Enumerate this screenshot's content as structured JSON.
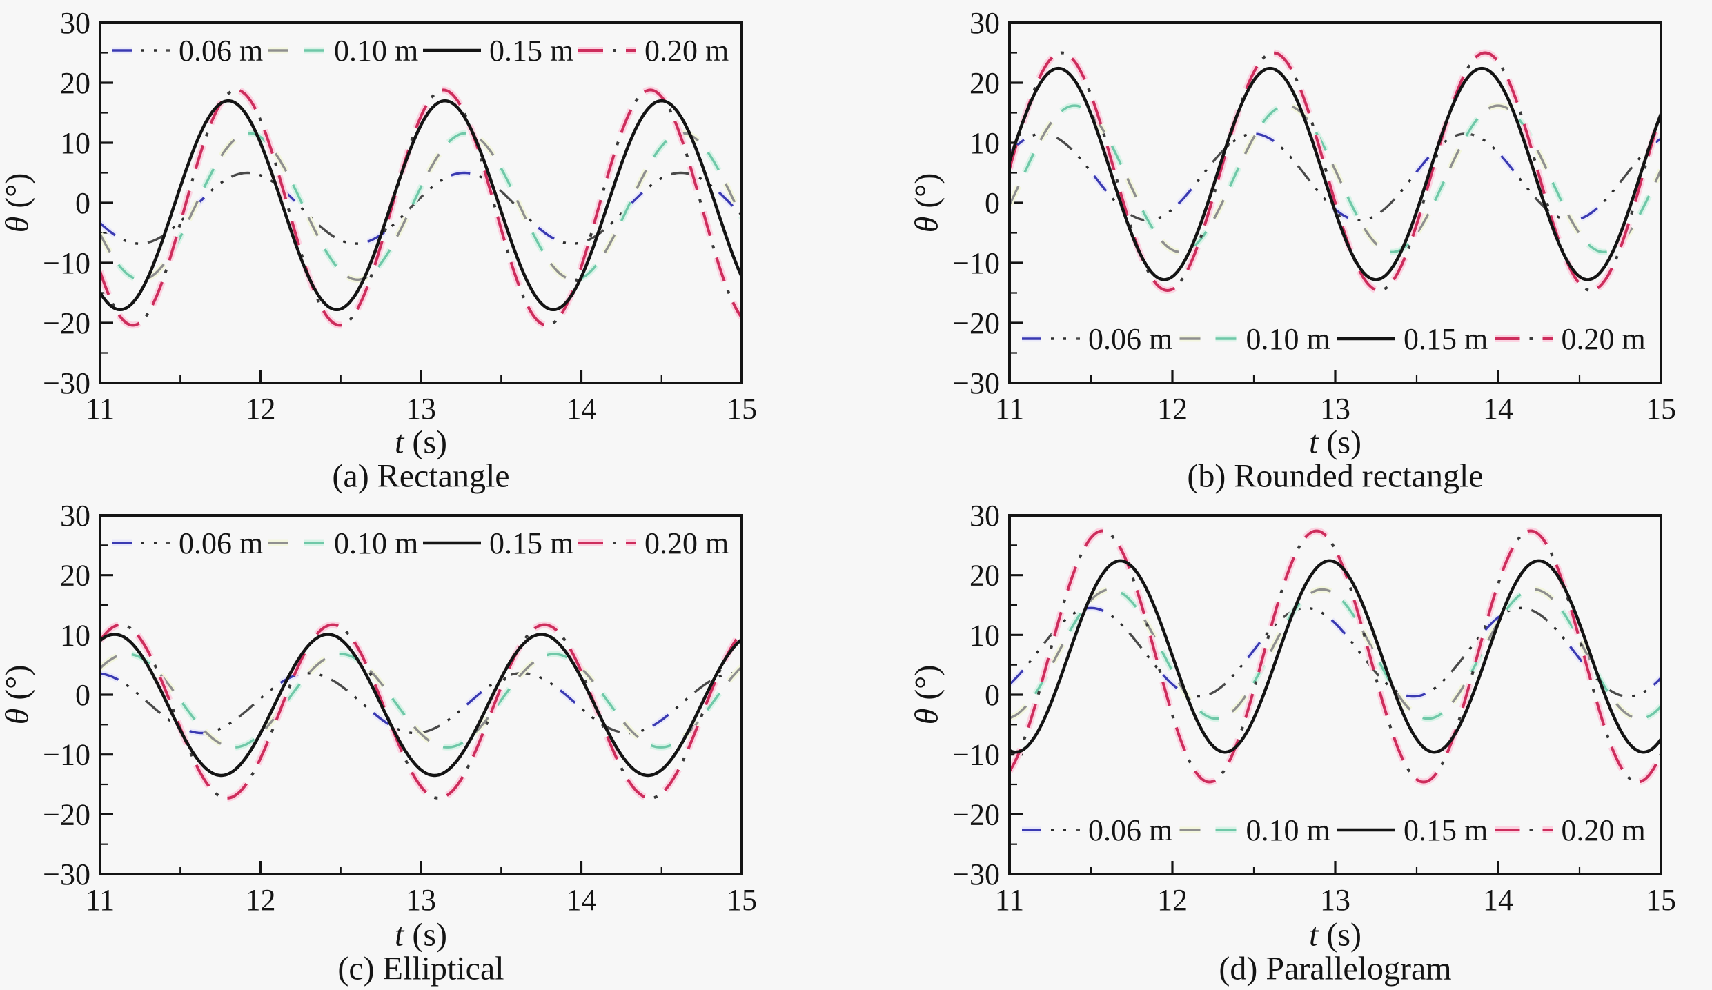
{
  "figure": {
    "background": "#f7f7f7",
    "description": "Joint angle time histories for four tail shapes at four fin lengths"
  },
  "shared": {
    "xlabel": {
      "var": "t",
      "unit": "(s)"
    },
    "ylabel": {
      "var": "θ",
      "unit": "(°)"
    },
    "legend_labels": [
      "0.06 m",
      "0.10 m",
      "0.15 m",
      "0.20 m"
    ],
    "colors": {
      "blue": "#3a3ab2",
      "dark_gray": "#4a4a4a",
      "gray": "#8f8f8f",
      "teal": "#6fc8a8",
      "black": "#141414",
      "crimson": "#cd2d5c",
      "axis": "#141414"
    }
  },
  "chart_data": [
    {
      "id": "a",
      "type": "line",
      "caption": "(a) Rectangle",
      "xlabel": "t (s)",
      "ylabel": "θ (°)",
      "xlim": [
        11,
        15
      ],
      "ylim": [
        -30,
        30
      ],
      "xticks": [
        "11",
        "12",
        "13",
        "14",
        "15"
      ],
      "yticks": [
        "−30",
        "−20",
        "−10",
        "0",
        "10",
        "20",
        "30"
      ],
      "x_minor_step": 0.5,
      "y_minor_step": 5,
      "grid": false,
      "legend_position": "top",
      "series": [
        {
          "name": "0.06 m",
          "style": "dash-dot-dot",
          "colors": [
            "#3a3ab2",
            "#4a4a4a"
          ],
          "waveform": {
            "amplitude": 5.9,
            "mean": -0.9,
            "period": 1.35,
            "peak_time": 11.92
          }
        },
        {
          "name": "0.10 m",
          "style": "dash",
          "colors": [
            "#8f8f8f",
            "#6fc8a8"
          ],
          "waveform": {
            "amplitude": 12.2,
            "mean": -0.6,
            "period": 1.35,
            "peak_time": 11.93
          }
        },
        {
          "name": "0.15 m",
          "style": "solid",
          "colors": [
            "#141414"
          ],
          "waveform": {
            "amplitude": 17.4,
            "mean": -0.4,
            "period": 1.35,
            "peak_time": 11.8
          }
        },
        {
          "name": "0.20 m",
          "style": "dash-dot",
          "colors": [
            "#cd2d5c"
          ],
          "waveform": {
            "amplitude": 19.6,
            "mean": -0.8,
            "period": 1.29,
            "peak_time": 11.85
          }
        }
      ]
    },
    {
      "id": "b",
      "type": "line",
      "caption": "(b) Rounded rectangle",
      "xlabel": "t (s)",
      "ylabel": "θ (°)",
      "xlim": [
        11,
        15
      ],
      "ylim": [
        -30,
        30
      ],
      "xticks": [
        "11",
        "12",
        "13",
        "14",
        "15"
      ],
      "yticks": [
        "−30",
        "−20",
        "−10",
        "0",
        "10",
        "20",
        "30"
      ],
      "x_minor_step": 0.5,
      "y_minor_step": 5,
      "grid": false,
      "legend_position": "bottom",
      "series": [
        {
          "name": "0.06 m",
          "style": "dash-dot-dot",
          "colors": [
            "#3a3ab2",
            "#4a4a4a"
          ],
          "waveform": {
            "amplitude": 7.2,
            "mean": 4.3,
            "period": 1.3,
            "peak_time": 11.2
          }
        },
        {
          "name": "0.10 m",
          "style": "dash",
          "colors": [
            "#8f8f8f",
            "#6fc8a8"
          ],
          "waveform": {
            "amplitude": 12.2,
            "mean": 4.0,
            "period": 1.3,
            "peak_time": 11.4
          }
        },
        {
          "name": "0.15 m",
          "style": "solid",
          "colors": [
            "#141414"
          ],
          "waveform": {
            "amplitude": 17.6,
            "mean": 4.8,
            "period": 1.3,
            "peak_time": 11.3
          }
        },
        {
          "name": "0.20 m",
          "style": "dash-dot",
          "colors": [
            "#cd2d5c"
          ],
          "waveform": {
            "amplitude": 19.8,
            "mean": 5.2,
            "period": 1.3,
            "peak_time": 11.32
          }
        }
      ]
    },
    {
      "id": "c",
      "type": "line",
      "caption": "(c) Elliptical",
      "xlabel": "t (s)",
      "ylabel": "θ (°)",
      "xlim": [
        11,
        15
      ],
      "ylim": [
        -30,
        30
      ],
      "xticks": [
        "11",
        "12",
        "13",
        "14",
        "15"
      ],
      "yticks": [
        "−30",
        "−20",
        "−10",
        "0",
        "10",
        "20",
        "30"
      ],
      "x_minor_step": 0.5,
      "y_minor_step": 5,
      "grid": false,
      "legend_position": "top",
      "series": [
        {
          "name": "0.06 m",
          "style": "dash-dot-dot",
          "colors": [
            "#3a3ab2",
            "#4a4a4a"
          ],
          "waveform": {
            "amplitude": 5.0,
            "mean": -1.4,
            "period": 1.33,
            "peak_time": 12.3
          }
        },
        {
          "name": "0.10 m",
          "style": "dash",
          "colors": [
            "#8f8f8f",
            "#6fc8a8"
          ],
          "waveform": {
            "amplitude": 7.8,
            "mean": -1.0,
            "period": 1.33,
            "peak_time": 12.5
          }
        },
        {
          "name": "0.15 m",
          "style": "solid",
          "colors": [
            "#141414"
          ],
          "waveform": {
            "amplitude": 11.8,
            "mean": -1.7,
            "period": 1.33,
            "peak_time": 12.42
          }
        },
        {
          "name": "0.20 m",
          "style": "dash-dot",
          "colors": [
            "#cd2d5c"
          ],
          "waveform": {
            "amplitude": 14.5,
            "mean": -2.8,
            "period": 1.32,
            "peak_time": 12.45
          }
        }
      ]
    },
    {
      "id": "d",
      "type": "line",
      "caption": "(d) Parallelogram",
      "xlabel": "t (s)",
      "ylabel": "θ (°)",
      "xlim": [
        11,
        15
      ],
      "ylim": [
        -30,
        30
      ],
      "xticks": [
        "11",
        "12",
        "13",
        "14",
        "15"
      ],
      "yticks": [
        "−30",
        "−20",
        "−10",
        "0",
        "10",
        "20",
        "30"
      ],
      "x_minor_step": 0.5,
      "y_minor_step": 5,
      "grid": false,
      "legend_position": "bottom",
      "series": [
        {
          "name": "0.06 m",
          "style": "dash-dot-dot",
          "colors": [
            "#3a3ab2",
            "#4a4a4a"
          ],
          "waveform": {
            "amplitude": 7.4,
            "mean": 7.1,
            "period": 1.32,
            "peak_time": 11.5
          }
        },
        {
          "name": "0.10 m",
          "style": "dash",
          "colors": [
            "#8f8f8f",
            "#6fc8a8"
          ],
          "waveform": {
            "amplitude": 10.8,
            "mean": 6.8,
            "period": 1.3,
            "peak_time": 11.62
          }
        },
        {
          "name": "0.15 m",
          "style": "solid",
          "colors": [
            "#141414"
          ],
          "waveform": {
            "amplitude": 16.0,
            "mean": 6.4,
            "period": 1.285,
            "peak_time": 11.68
          }
        },
        {
          "name": "0.20 m",
          "style": "dash-dot",
          "colors": [
            "#cd2d5c"
          ],
          "waveform": {
            "amplitude": 21.0,
            "mean": 6.4,
            "period": 1.315,
            "peak_time": 11.57
          }
        }
      ]
    }
  ]
}
